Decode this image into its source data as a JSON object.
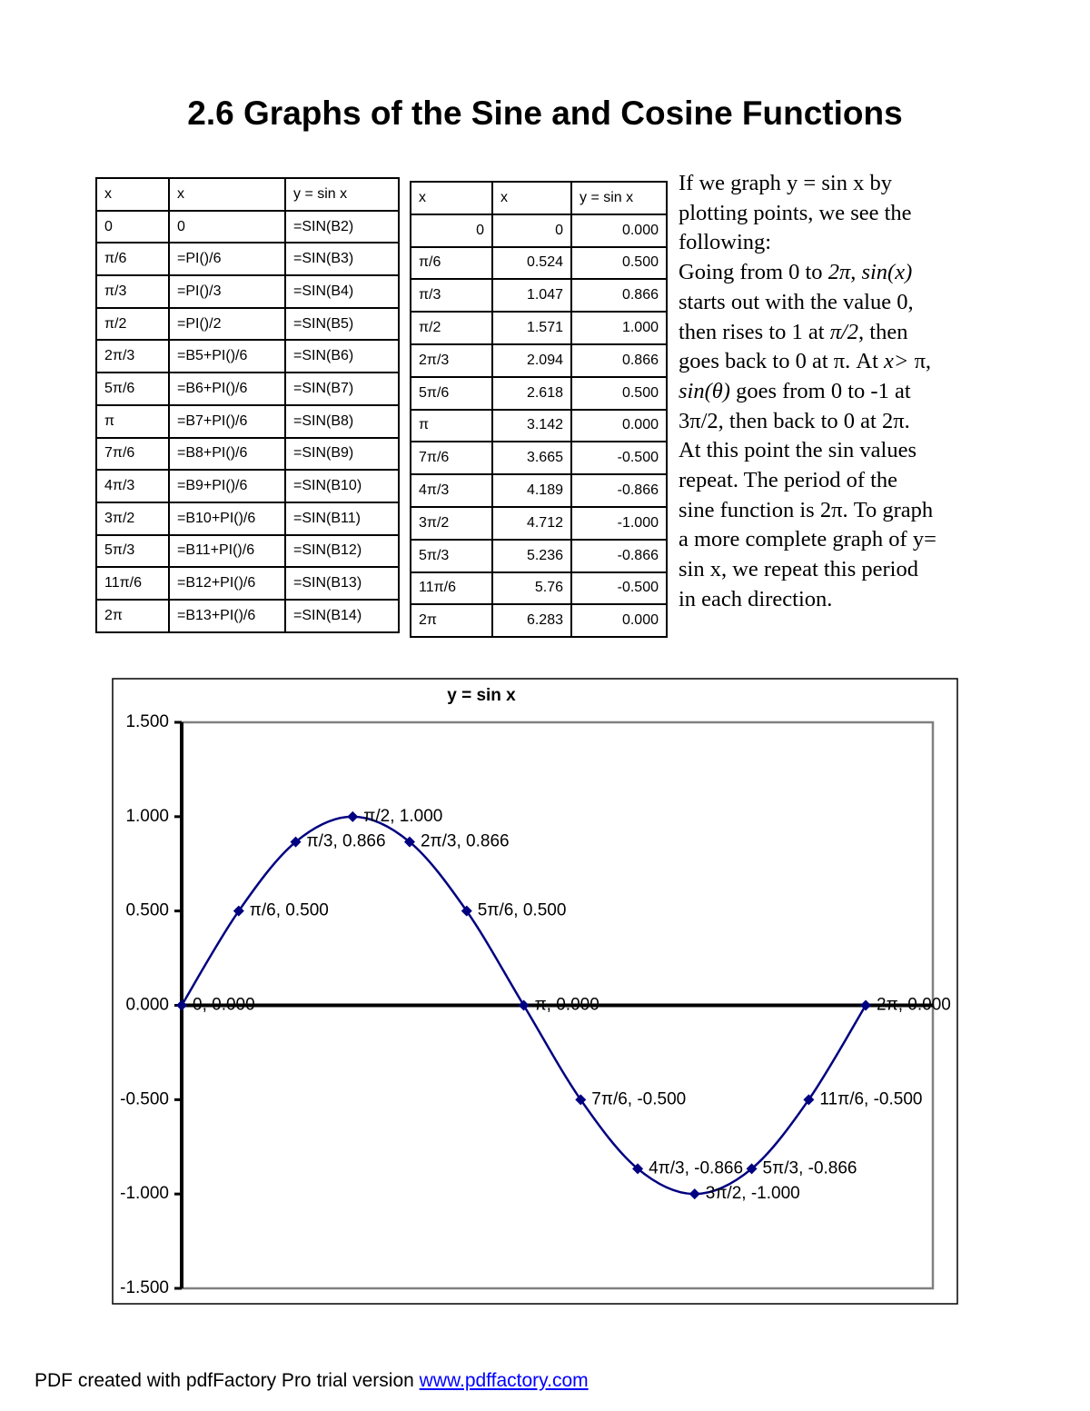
{
  "header": {
    "title": "2.6 Graphs of the Sine and Cosine Functions"
  },
  "formula_table": {
    "header": [
      "x",
      "x",
      "y = sin x"
    ],
    "rows": [
      [
        "0",
        "0",
        "=SIN(B2)"
      ],
      [
        "π/6",
        "=PI()/6",
        "=SIN(B3)"
      ],
      [
        "π/3",
        "=PI()/3",
        "=SIN(B4)"
      ],
      [
        "π/2",
        "=PI()/2",
        "=SIN(B5)"
      ],
      [
        "2π/3",
        "=B5+PI()/6",
        "=SIN(B6)"
      ],
      [
        "5π/6",
        "=B6+PI()/6",
        "=SIN(B7)"
      ],
      [
        "π",
        "=B7+PI()/6",
        "=SIN(B8)"
      ],
      [
        "7π/6",
        "=B8+PI()/6",
        "=SIN(B9)"
      ],
      [
        "4π/3",
        "=B9+PI()/6",
        "=SIN(B10)"
      ],
      [
        "3π/2",
        "=B10+PI()/6",
        "=SIN(B11)"
      ],
      [
        "5π/3",
        "=B11+PI()/6",
        "=SIN(B12)"
      ],
      [
        "11π/6",
        "=B12+PI()/6",
        "=SIN(B13)"
      ],
      [
        "2π",
        "=B13+PI()/6",
        "=SIN(B14)"
      ]
    ]
  },
  "value_table": {
    "header": [
      "x",
      "x",
      "y = sin x"
    ],
    "rows": [
      [
        "0",
        "0",
        "0.000"
      ],
      [
        "π/6",
        "0.524",
        "0.500"
      ],
      [
        "π/3",
        "1.047",
        "0.866"
      ],
      [
        "π/2",
        "1.571",
        "1.000"
      ],
      [
        "2π/3",
        "2.094",
        "0.866"
      ],
      [
        "5π/6",
        "2.618",
        "0.500"
      ],
      [
        "π",
        "3.142",
        "0.000"
      ],
      [
        "7π/6",
        "3.665",
        "-0.500"
      ],
      [
        "4π/3",
        "4.189",
        "-0.866"
      ],
      [
        "3π/2",
        "4.712",
        "-1.000"
      ],
      [
        "5π/3",
        "5.236",
        "-0.866"
      ],
      [
        "11π/6",
        "5.76",
        "-0.500"
      ],
      [
        "2π",
        "6.283",
        "0.000"
      ]
    ]
  },
  "paragraph": {
    "intro": "If we graph y = sin x by plotting points, we see the following:",
    "runs": [
      {
        "text": "Going from 0 to ",
        "italic": false
      },
      {
        "text": "2π",
        "italic": true
      },
      {
        "text": ", ",
        "italic": false
      },
      {
        "text": "sin(x)",
        "italic": true
      },
      {
        "text": " starts out with the value 0, then rises to 1 at ",
        "italic": false
      },
      {
        "text": "π/2",
        "italic": true
      },
      {
        "text": ", then goes back to 0 at π. At ",
        "italic": false
      },
      {
        "text": "x>",
        "italic": true
      },
      {
        "text": " π, ",
        "italic": false
      },
      {
        "text": "sin(θ)",
        "italic": true
      },
      {
        "text": " goes from 0 to -1 at 3π/2, then back to 0 at 2π. At this point the sin values repeat. The period of the sine function is 2π. To graph a more complete graph of y= sin x, we repeat this period in each direction.",
        "italic": false
      }
    ]
  },
  "chart_data": {
    "type": "line",
    "title": "y = sin  x",
    "x": [
      0,
      0.524,
      1.047,
      1.571,
      2.094,
      2.618,
      3.142,
      3.665,
      4.189,
      4.712,
      5.236,
      5.76,
      6.283
    ],
    "series": [
      {
        "color": "#000080",
        "values": [
          0,
          0.5,
          0.866,
          1,
          0.866,
          0.5,
          0,
          -0.5,
          -0.866,
          -1,
          -0.866,
          -0.5,
          0
        ],
        "value_labels": [
          "0, 0.000",
          "π/6, 0.500",
          "π/3, 0.866",
          "π/2, 1.000",
          "2π/3, 0.866",
          "5π/6, 0.500",
          "π, 0.000",
          "7π/6, -0.500",
          "4π/3, -0.866",
          "3π/2, -1.000",
          "5π/3, -0.866",
          "11π/6, -0.500",
          "2π, 0.000"
        ]
      }
    ],
    "xlim": [
      0,
      6.9
    ],
    "ylim": [
      -1.5,
      1.5
    ],
    "yticks": [
      {
        "value": -1.5,
        "label": "-1.500"
      },
      {
        "value": -1,
        "label": "-1.000"
      },
      {
        "value": -0.5,
        "label": "-0.500"
      },
      {
        "value": 0,
        "label": "0.000"
      },
      {
        "value": 0.5,
        "label": "0.500"
      },
      {
        "value": 1,
        "label": "1.000"
      },
      {
        "value": 1.5,
        "label": "1.500"
      }
    ]
  },
  "footer": {
    "text": "PDF created with pdfFactory Pro trial version ",
    "link": "www.pdffactory.com"
  }
}
